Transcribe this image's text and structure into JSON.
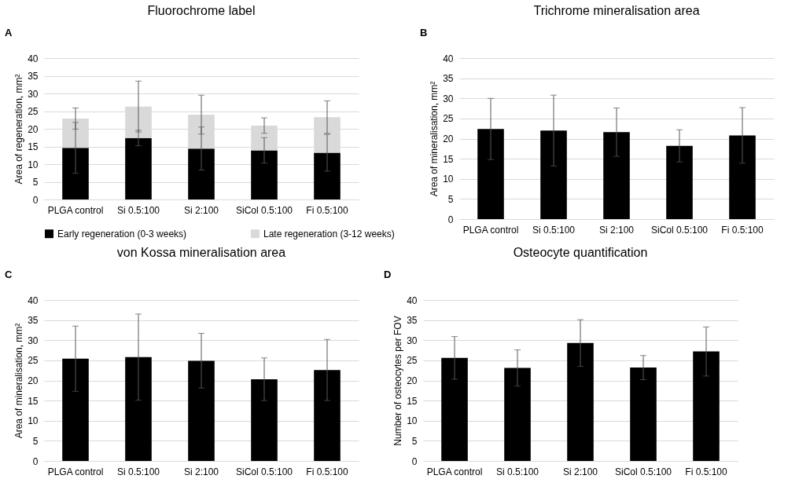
{
  "chart_data": [
    {
      "type": "bar",
      "title": "Fluorochrome label",
      "ylabel": "Area of regeneration, mm²",
      "annotations": [
        "A"
      ],
      "categories": [
        "PLGA control",
        "Si 0.5:100",
        "Si 2:100",
        "SiCol 0.5:100",
        "Fi 0.5:100"
      ],
      "stacked": true,
      "series": [
        {
          "name": "Early regeneration (0-3 weeks)",
          "color": "#000000",
          "values": [
            14.6,
            17.4,
            14.4,
            13.9,
            13.2
          ],
          "errors": [
            7.2,
            2.2,
            6.1,
            3.6,
            5.2
          ]
        },
        {
          "name": "Late regeneration (3-12 weeks)",
          "color": "#d9d9d9",
          "values": [
            8.3,
            8.9,
            9.6,
            7.0,
            10.1
          ],
          "errors": [
            3.0,
            7.2,
            5.5,
            2.2,
            4.6
          ]
        }
      ],
      "ylim": [
        0,
        40
      ],
      "yticks": [
        0,
        5,
        10,
        15,
        20,
        25,
        30,
        35,
        40
      ],
      "grid": "y",
      "legend": "bottom"
    },
    {
      "type": "bar",
      "title": "Trichrome mineralisation area",
      "ylabel": "Area of mineralisation, mm²",
      "annotations": [
        "B"
      ],
      "categories": [
        "PLGA control",
        "Si 0.5:100",
        "Si 2:100",
        "SiCol 0.5:100",
        "Fi 0.5:100"
      ],
      "series": [
        {
          "color": "#000000",
          "values": [
            22.4,
            22.0,
            21.6,
            18.2,
            20.8
          ],
          "errors": [
            7.6,
            8.8,
            6.0,
            4.0,
            6.9
          ]
        }
      ],
      "ylim": [
        0,
        40
      ],
      "yticks": [
        0,
        5,
        10,
        15,
        20,
        25,
        30,
        35,
        40
      ],
      "grid": "y"
    },
    {
      "type": "bar",
      "title": "von Kossa mineralisation area",
      "ylabel": "Area of mineralisation, mm²",
      "annotations": [
        "C"
      ],
      "categories": [
        "PLGA control",
        "Si 0.5:100",
        "Si 2:100",
        "SiCol 0.5:100",
        "Fi 0.5:100"
      ],
      "series": [
        {
          "color": "#000000",
          "values": [
            25.4,
            25.8,
            24.9,
            20.3,
            22.6
          ],
          "errors": [
            8.1,
            10.7,
            6.8,
            5.3,
            7.6
          ]
        }
      ],
      "ylim": [
        0,
        40
      ],
      "yticks": [
        0,
        5,
        10,
        15,
        20,
        25,
        30,
        35,
        40
      ],
      "grid": "y"
    },
    {
      "type": "bar",
      "title": "Osteocyte quantification",
      "ylabel": "Number of osteocytes per FOV",
      "annotations": [
        "D"
      ],
      "categories": [
        "PLGA control",
        "Si 0.5:100",
        "Si 2:100",
        "SiCol 0.5:100",
        "Fi 0.5:100"
      ],
      "series": [
        {
          "color": "#000000",
          "values": [
            25.6,
            23.1,
            29.3,
            23.2,
            27.2
          ],
          "errors": [
            5.3,
            4.5,
            5.8,
            3.0,
            6.1
          ]
        }
      ],
      "ylim": [
        0,
        40
      ],
      "yticks": [
        0,
        5,
        10,
        15,
        20,
        25,
        30,
        35,
        40
      ],
      "grid": "y"
    }
  ]
}
